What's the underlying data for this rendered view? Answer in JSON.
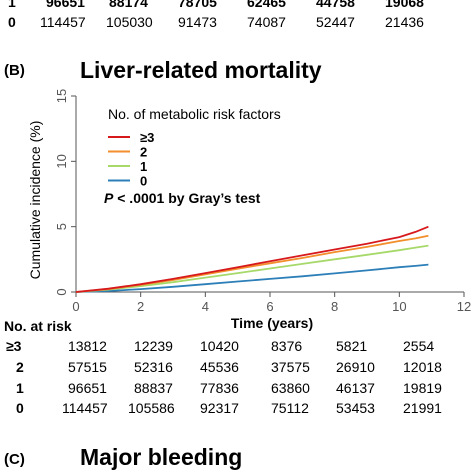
{
  "top_partial_table": {
    "rows": [
      {
        "label": "1",
        "values": [
          "96651",
          "88174",
          "78705",
          "62465",
          "44758",
          "19068"
        ]
      },
      {
        "label": "0",
        "values": [
          "114457",
          "105030",
          "91473",
          "74087",
          "52447",
          "21436"
        ]
      }
    ]
  },
  "panel_b": {
    "label": "(B)",
    "title": "Liver-related mortality"
  },
  "panel_c": {
    "label": "(C)",
    "title": "Major bleeding"
  },
  "chart_data": {
    "type": "line",
    "title": "Liver-related mortality",
    "xlabel": "Time (years)",
    "ylabel": "Cumulative incidence (%)",
    "xlim": [
      0,
      12
    ],
    "ylim": [
      0,
      15
    ],
    "xticks": [
      "0",
      "2",
      "4",
      "6",
      "8",
      "10",
      "12"
    ],
    "yticks": [
      "0",
      "5",
      "10",
      "15"
    ],
    "legend": {
      "title": "No. of metabolic risk factors",
      "placement": "top-left"
    },
    "annotation": {
      "p_symbol": "P",
      "text": " < .0001 by Gray’s test"
    },
    "series": [
      {
        "name": "≥3",
        "color": "#d7191c",
        "x": [
          0,
          1,
          2,
          3,
          4,
          5,
          6,
          7,
          8,
          9,
          10,
          10.5,
          10.9
        ],
        "y": [
          0,
          0.25,
          0.6,
          1.0,
          1.45,
          1.9,
          2.35,
          2.8,
          3.25,
          3.7,
          4.2,
          4.6,
          5.0
        ]
      },
      {
        "name": "2",
        "color": "#f28e2b",
        "x": [
          0,
          1,
          2,
          3,
          4,
          5,
          6,
          7,
          8,
          9,
          10,
          10.5,
          10.9
        ],
        "y": [
          0,
          0.22,
          0.55,
          0.92,
          1.35,
          1.78,
          2.2,
          2.6,
          3.05,
          3.45,
          3.9,
          4.1,
          4.3
        ]
      },
      {
        "name": "1",
        "color": "#a6d96a",
        "x": [
          0,
          1,
          2,
          3,
          4,
          5,
          6,
          7,
          8,
          9,
          10,
          10.5,
          10.9
        ],
        "y": [
          0,
          0.18,
          0.45,
          0.75,
          1.1,
          1.45,
          1.8,
          2.15,
          2.5,
          2.85,
          3.2,
          3.4,
          3.55
        ]
      },
      {
        "name": "0",
        "color": "#2c7fb8",
        "x": [
          0,
          1,
          2,
          3,
          4,
          5,
          6,
          7,
          8,
          9,
          10,
          10.5,
          10.9
        ],
        "y": [
          0,
          0.08,
          0.22,
          0.4,
          0.6,
          0.8,
          1.0,
          1.2,
          1.42,
          1.65,
          1.9,
          2.0,
          2.1
        ]
      }
    ],
    "grid": false
  },
  "risk_table": {
    "header": "No. at risk",
    "rows": [
      {
        "label": "≥3",
        "values": [
          "13812",
          "12239",
          "10420",
          "8376",
          "5821",
          "2554"
        ]
      },
      {
        "label": "2",
        "values": [
          "57515",
          "52316",
          "45536",
          "37575",
          "26910",
          "12018"
        ]
      },
      {
        "label": "1",
        "values": [
          "96651",
          "88837",
          "77836",
          "63860",
          "46137",
          "19819"
        ]
      },
      {
        "label": "0",
        "values": [
          "114457",
          "105586",
          "92317",
          "75112",
          "53453",
          "21991"
        ]
      }
    ]
  }
}
